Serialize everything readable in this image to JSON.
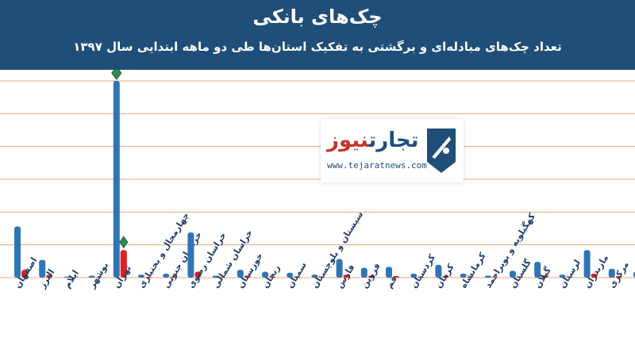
{
  "header": {
    "title": "چک‌های بانکی",
    "subtitle": "تعداد چک‌های مبادله‌ای و برگشتی به تفکیک استان‌ها طی دو ماهه ابتدایی سال ۱۳۹۷"
  },
  "logo": {
    "name_blue": "تجارت",
    "name_red": "نیوز",
    "url": "www.tejaratnews.com"
  },
  "colors": {
    "header_bg": "#1f4e79",
    "exchanged": "#2e75b6",
    "returned": "#e31e24",
    "grid": "#e8a87c",
    "marker": "#2e8b57"
  },
  "chart_data": {
    "type": "bar",
    "ylim": [
      0,
      100
    ],
    "grid": true,
    "categories": [
      "اصفهان",
      "البرز",
      "ایلام",
      "بوشهر",
      "تهران",
      "چهارمحال و بختیاری",
      "خراسان جنوبی",
      "خراسان رضوی",
      "خراسان شمالی",
      "خوزستان",
      "زنجان",
      "سمنان",
      "سیستان و بلوچستان",
      "فارس",
      "قزوین",
      "قم",
      "کردستان",
      "کرمان",
      "کرمانشاه",
      "کهگیلویه و بویراحمد",
      "گلستان",
      "گیلان",
      "لرستان",
      "مازندران",
      "مرکزی",
      "هرمزگان"
    ],
    "series": [
      {
        "values": [
          26,
          9,
          0.5,
          1,
          100,
          1.5,
          2,
          23,
          1,
          4,
          3,
          2.5,
          1.5,
          9.5,
          5,
          5.5,
          2,
          6.5,
          2,
          1,
          3.5,
          8,
          1.5,
          14,
          4.5,
          3
        ]
      },
      {
        "values": [
          4,
          1.5,
          0.2,
          0.3,
          14,
          0.4,
          0.5,
          3,
          0.3,
          1,
          0.6,
          0.6,
          0.5,
          1.5,
          1,
          0.8,
          0.4,
          1,
          0.5,
          0.3,
          0.6,
          1.2,
          0.4,
          2,
          0.8,
          0.6
        ]
      }
    ]
  }
}
